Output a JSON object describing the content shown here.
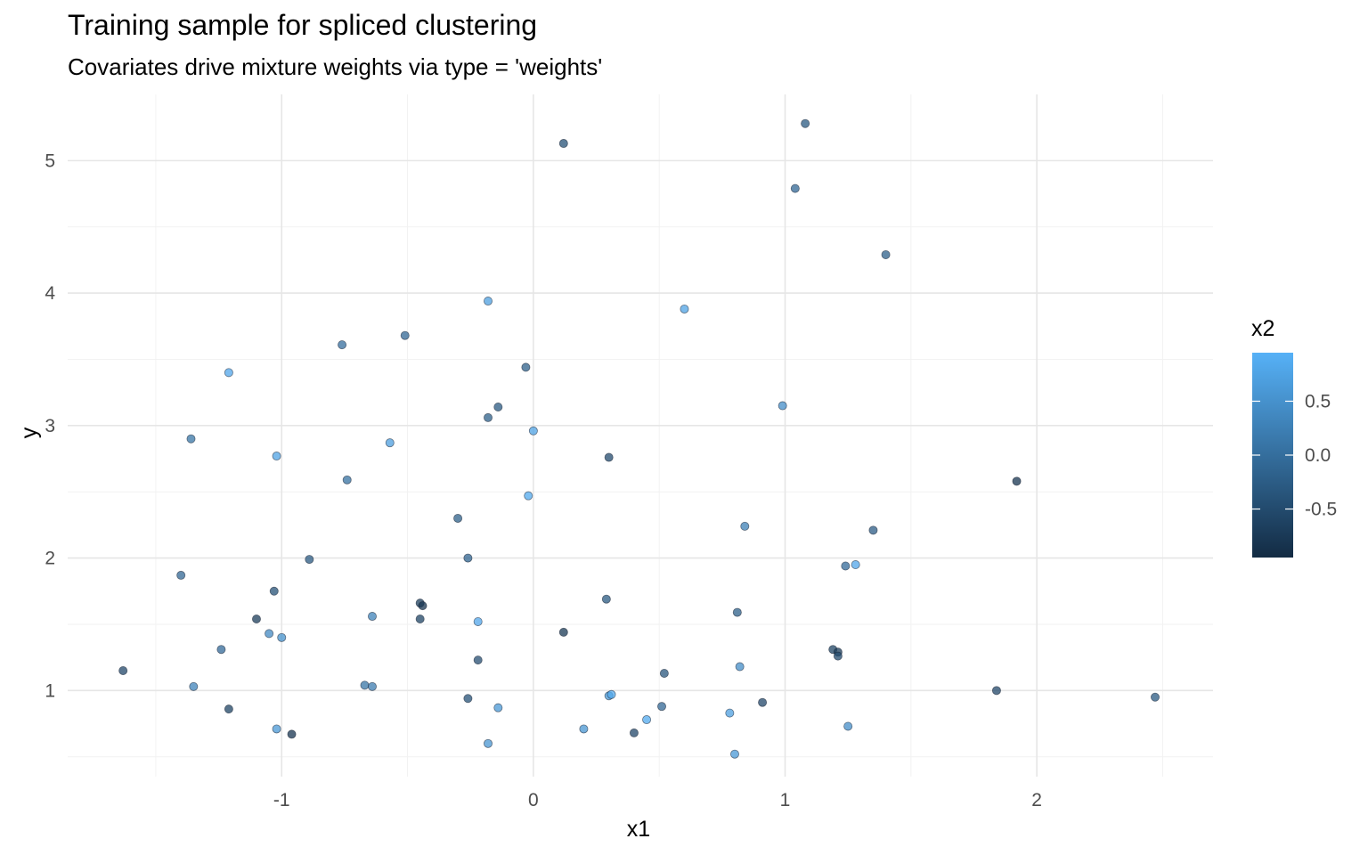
{
  "chart_data": {
    "type": "scatter",
    "title": "Training sample for spliced clustering",
    "subtitle": "Covariates drive mixture weights via type = 'weights'",
    "xlabel": "x1",
    "ylabel": "y",
    "xlim": [
      -1.85,
      2.7
    ],
    "ylim": [
      0.35,
      5.5
    ],
    "x_ticks": [
      "-1",
      "0",
      "1",
      "2"
    ],
    "y_ticks": [
      "1",
      "2",
      "3",
      "4",
      "5"
    ],
    "grid": true,
    "legend": {
      "title": "x2",
      "position": "right",
      "ticks": [
        "0.5",
        "0.0",
        "-0.5"
      ],
      "range": [
        -0.95,
        0.95
      ],
      "low_color": "#132b43",
      "high_color": "#56b1f7"
    },
    "points": [
      {
        "x1": -1.63,
        "y": 1.15,
        "x2": -0.55
      },
      {
        "x1": -1.4,
        "y": 1.87,
        "x2": -0.1
      },
      {
        "x1": -1.36,
        "y": 2.9,
        "x2": 0.1
      },
      {
        "x1": -1.35,
        "y": 1.03,
        "x2": 0.3
      },
      {
        "x1": -1.24,
        "y": 1.31,
        "x2": -0.05
      },
      {
        "x1": -1.21,
        "y": 3.4,
        "x2": 0.8
      },
      {
        "x1": -1.21,
        "y": 0.86,
        "x2": -0.6
      },
      {
        "x1": -1.1,
        "y": 1.54,
        "x2": -0.7
      },
      {
        "x1": -1.05,
        "y": 1.43,
        "x2": 0.4
      },
      {
        "x1": -1.03,
        "y": 1.75,
        "x2": -0.4
      },
      {
        "x1": -1.02,
        "y": 2.77,
        "x2": 0.75
      },
      {
        "x1": -1.02,
        "y": 0.71,
        "x2": 0.6
      },
      {
        "x1": -1.0,
        "y": 1.4,
        "x2": 0.5
      },
      {
        "x1": -0.96,
        "y": 0.67,
        "x2": -0.8
      },
      {
        "x1": -0.89,
        "y": 1.99,
        "x2": -0.3
      },
      {
        "x1": -0.76,
        "y": 3.61,
        "x2": 0.0
      },
      {
        "x1": -0.74,
        "y": 2.59,
        "x2": 0.05
      },
      {
        "x1": -0.67,
        "y": 1.04,
        "x2": 0.1
      },
      {
        "x1": -0.64,
        "y": 1.56,
        "x2": 0.3
      },
      {
        "x1": -0.64,
        "y": 1.03,
        "x2": 0.2
      },
      {
        "x1": -0.57,
        "y": 2.87,
        "x2": 0.7
      },
      {
        "x1": -0.51,
        "y": 3.68,
        "x2": -0.1
      },
      {
        "x1": -0.45,
        "y": 1.66,
        "x2": -0.65
      },
      {
        "x1": -0.45,
        "y": 1.54,
        "x2": -0.6
      },
      {
        "x1": -0.44,
        "y": 1.64,
        "x2": -0.8
      },
      {
        "x1": -0.3,
        "y": 2.3,
        "x2": -0.2
      },
      {
        "x1": -0.26,
        "y": 2.0,
        "x2": -0.15
      },
      {
        "x1": -0.26,
        "y": 0.94,
        "x2": -0.4
      },
      {
        "x1": -0.22,
        "y": 1.52,
        "x2": 0.8
      },
      {
        "x1": -0.22,
        "y": 1.23,
        "x2": -0.45
      },
      {
        "x1": -0.18,
        "y": 3.94,
        "x2": 0.7
      },
      {
        "x1": -0.18,
        "y": 3.06,
        "x2": -0.2
      },
      {
        "x1": -0.18,
        "y": 0.6,
        "x2": 0.55
      },
      {
        "x1": -0.14,
        "y": 3.14,
        "x2": -0.3
      },
      {
        "x1": -0.14,
        "y": 0.87,
        "x2": 0.6
      },
      {
        "x1": -0.03,
        "y": 3.44,
        "x2": -0.2
      },
      {
        "x1": -0.02,
        "y": 2.47,
        "x2": 0.85
      },
      {
        "x1": 0.0,
        "y": 2.96,
        "x2": 0.75
      },
      {
        "x1": 0.12,
        "y": 5.13,
        "x2": -0.4
      },
      {
        "x1": 0.12,
        "y": 1.44,
        "x2": -0.75
      },
      {
        "x1": 0.2,
        "y": 0.71,
        "x2": 0.55
      },
      {
        "x1": 0.29,
        "y": 1.69,
        "x2": -0.3
      },
      {
        "x1": 0.3,
        "y": 2.76,
        "x2": -0.5
      },
      {
        "x1": 0.3,
        "y": 0.96,
        "x2": 0.6
      },
      {
        "x1": 0.31,
        "y": 0.97,
        "x2": 0.85
      },
      {
        "x1": 0.4,
        "y": 0.68,
        "x2": -0.55
      },
      {
        "x1": 0.45,
        "y": 0.78,
        "x2": 0.85
      },
      {
        "x1": 0.51,
        "y": 0.88,
        "x2": -0.1
      },
      {
        "x1": 0.52,
        "y": 1.13,
        "x2": -0.35
      },
      {
        "x1": 0.6,
        "y": 3.88,
        "x2": 0.75
      },
      {
        "x1": 0.78,
        "y": 0.83,
        "x2": 0.7
      },
      {
        "x1": 0.8,
        "y": 0.52,
        "x2": 0.6
      },
      {
        "x1": 0.81,
        "y": 1.59,
        "x2": -0.2
      },
      {
        "x1": 0.82,
        "y": 1.18,
        "x2": 0.45
      },
      {
        "x1": 0.84,
        "y": 2.24,
        "x2": 0.25
      },
      {
        "x1": 0.91,
        "y": 0.91,
        "x2": -0.55
      },
      {
        "x1": 0.99,
        "y": 3.15,
        "x2": 0.45
      },
      {
        "x1": 1.04,
        "y": 4.79,
        "x2": -0.1
      },
      {
        "x1": 1.08,
        "y": 5.28,
        "x2": -0.3
      },
      {
        "x1": 1.19,
        "y": 1.31,
        "x2": -0.6
      },
      {
        "x1": 1.21,
        "y": 1.29,
        "x2": -0.7
      },
      {
        "x1": 1.21,
        "y": 1.26,
        "x2": -0.5
      },
      {
        "x1": 1.24,
        "y": 1.94,
        "x2": -0.05
      },
      {
        "x1": 1.25,
        "y": 0.73,
        "x2": 0.45
      },
      {
        "x1": 1.28,
        "y": 1.95,
        "x2": 0.8
      },
      {
        "x1": 1.35,
        "y": 2.21,
        "x2": -0.25
      },
      {
        "x1": 1.4,
        "y": 4.29,
        "x2": -0.2
      },
      {
        "x1": 1.84,
        "y": 1.0,
        "x2": -0.55
      },
      {
        "x1": 1.92,
        "y": 2.58,
        "x2": -0.8
      },
      {
        "x1": 2.47,
        "y": 0.95,
        "x2": -0.3
      }
    ]
  }
}
